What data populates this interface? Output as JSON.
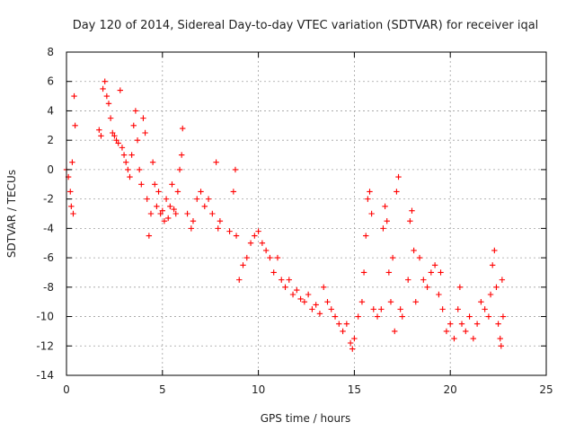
{
  "chart_data": {
    "type": "scatter",
    "title": "Day 120 of 2014, Sidereal Day-to-day VTEC variation (SDTVAR) for receiver iqal",
    "xlabel": "GPS time / hours",
    "ylabel": "SDTVAR / TECUs",
    "xlim": [
      0,
      25
    ],
    "ylim": [
      -14,
      8
    ],
    "xticks": [
      0,
      5,
      10,
      15,
      20,
      25
    ],
    "yticks": [
      -14,
      -12,
      -10,
      -8,
      -6,
      -4,
      -2,
      0,
      2,
      4,
      6,
      8
    ],
    "grid": true,
    "marker": "+",
    "series": [
      {
        "name": "SDTVAR",
        "color": "#ff0000",
        "points": [
          [
            0.0,
            0.0
          ],
          [
            0.1,
            -0.5
          ],
          [
            0.2,
            -1.5
          ],
          [
            0.25,
            -2.5
          ],
          [
            0.3,
            0.5
          ],
          [
            0.35,
            -3.0
          ],
          [
            0.4,
            5.0
          ],
          [
            0.45,
            3.0
          ],
          [
            1.7,
            2.7
          ],
          [
            1.8,
            2.3
          ],
          [
            1.9,
            5.5
          ],
          [
            2.0,
            6.0
          ],
          [
            2.1,
            5.0
          ],
          [
            2.2,
            4.5
          ],
          [
            2.3,
            3.5
          ],
          [
            2.4,
            2.5
          ],
          [
            2.5,
            2.3
          ],
          [
            2.6,
            2.0
          ],
          [
            2.7,
            1.8
          ],
          [
            2.8,
            5.4
          ],
          [
            2.9,
            1.5
          ],
          [
            3.0,
            1.0
          ],
          [
            3.1,
            0.5
          ],
          [
            3.2,
            0.0
          ],
          [
            3.3,
            -0.5
          ],
          [
            3.4,
            1.0
          ],
          [
            3.5,
            3.0
          ],
          [
            3.6,
            4.0
          ],
          [
            3.7,
            2.0
          ],
          [
            3.8,
            0.0
          ],
          [
            3.9,
            -1.0
          ],
          [
            4.0,
            3.5
          ],
          [
            4.1,
            2.5
          ],
          [
            4.2,
            -2.0
          ],
          [
            4.3,
            -4.5
          ],
          [
            4.4,
            -3.0
          ],
          [
            4.5,
            0.5
          ],
          [
            4.6,
            -1.0
          ],
          [
            4.7,
            -2.5
          ],
          [
            4.8,
            -1.5
          ],
          [
            4.9,
            -3.0
          ],
          [
            5.0,
            -2.8
          ],
          [
            5.1,
            -3.5
          ],
          [
            5.2,
            -2.0
          ],
          [
            5.3,
            -3.3
          ],
          [
            5.4,
            -2.5
          ],
          [
            5.5,
            -1.0
          ],
          [
            5.6,
            -2.7
          ],
          [
            5.7,
            -3.0
          ],
          [
            5.8,
            -1.5
          ],
          [
            5.9,
            0.0
          ],
          [
            6.0,
            1.0
          ],
          [
            6.05,
            2.8
          ],
          [
            6.3,
            -3.0
          ],
          [
            6.5,
            -4.0
          ],
          [
            6.6,
            -3.5
          ],
          [
            6.8,
            -2.0
          ],
          [
            7.0,
            -1.5
          ],
          [
            7.2,
            -2.5
          ],
          [
            7.4,
            -2.0
          ],
          [
            7.6,
            -3.0
          ],
          [
            7.8,
            0.5
          ],
          [
            7.9,
            -4.0
          ],
          [
            8.0,
            -3.5
          ],
          [
            8.5,
            -4.2
          ],
          [
            8.7,
            -1.5
          ],
          [
            8.8,
            0.0
          ],
          [
            8.85,
            -4.5
          ],
          [
            9.0,
            -7.5
          ],
          [
            9.2,
            -6.5
          ],
          [
            9.4,
            -6.0
          ],
          [
            9.6,
            -5.0
          ],
          [
            9.8,
            -4.5
          ],
          [
            10.0,
            -4.2
          ],
          [
            10.2,
            -5.0
          ],
          [
            10.4,
            -5.5
          ],
          [
            10.6,
            -6.0
          ],
          [
            10.8,
            -7.0
          ],
          [
            11.0,
            -6.0
          ],
          [
            11.2,
            -7.5
          ],
          [
            11.4,
            -8.0
          ],
          [
            11.6,
            -7.5
          ],
          [
            11.8,
            -8.5
          ],
          [
            12.0,
            -8.2
          ],
          [
            12.2,
            -8.8
          ],
          [
            12.4,
            -9.0
          ],
          [
            12.6,
            -8.5
          ],
          [
            12.8,
            -9.5
          ],
          [
            13.0,
            -9.2
          ],
          [
            13.2,
            -9.8
          ],
          [
            13.4,
            -8.0
          ],
          [
            13.6,
            -9.0
          ],
          [
            13.8,
            -9.5
          ],
          [
            14.0,
            -10.0
          ],
          [
            14.2,
            -10.5
          ],
          [
            14.4,
            -11.0
          ],
          [
            14.6,
            -10.5
          ],
          [
            14.8,
            -11.8
          ],
          [
            14.9,
            -12.2
          ],
          [
            15.0,
            -11.5
          ],
          [
            15.2,
            -10.0
          ],
          [
            15.4,
            -9.0
          ],
          [
            15.5,
            -7.0
          ],
          [
            15.6,
            -4.5
          ],
          [
            15.7,
            -2.0
          ],
          [
            15.8,
            -1.5
          ],
          [
            15.9,
            -3.0
          ],
          [
            16.0,
            -9.5
          ],
          [
            16.2,
            -10.0
          ],
          [
            16.4,
            -9.5
          ],
          [
            16.5,
            -4.0
          ],
          [
            16.6,
            -2.5
          ],
          [
            16.7,
            -3.5
          ],
          [
            16.8,
            -7.0
          ],
          [
            16.9,
            -9.0
          ],
          [
            17.0,
            -6.0
          ],
          [
            17.1,
            -11.0
          ],
          [
            17.2,
            -1.5
          ],
          [
            17.3,
            -0.5
          ],
          [
            17.4,
            -9.5
          ],
          [
            17.5,
            -10.0
          ],
          [
            17.8,
            -7.5
          ],
          [
            17.9,
            -3.5
          ],
          [
            18.0,
            -2.8
          ],
          [
            18.1,
            -5.5
          ],
          [
            18.2,
            -9.0
          ],
          [
            18.4,
            -6.0
          ],
          [
            18.6,
            -7.5
          ],
          [
            18.8,
            -8.0
          ],
          [
            19.0,
            -7.0
          ],
          [
            19.2,
            -6.5
          ],
          [
            19.4,
            -8.5
          ],
          [
            19.5,
            -7.0
          ],
          [
            19.6,
            -9.5
          ],
          [
            19.8,
            -11.0
          ],
          [
            20.0,
            -10.5
          ],
          [
            20.2,
            -11.5
          ],
          [
            20.4,
            -9.5
          ],
          [
            20.5,
            -8.0
          ],
          [
            20.6,
            -10.5
          ],
          [
            20.8,
            -11.0
          ],
          [
            21.0,
            -10.0
          ],
          [
            21.2,
            -11.5
          ],
          [
            21.4,
            -10.5
          ],
          [
            21.6,
            -9.0
          ],
          [
            21.8,
            -9.5
          ],
          [
            22.0,
            -10.0
          ],
          [
            22.1,
            -8.5
          ],
          [
            22.2,
            -6.5
          ],
          [
            22.3,
            -5.5
          ],
          [
            22.4,
            -8.0
          ],
          [
            22.5,
            -10.5
          ],
          [
            22.6,
            -11.5
          ],
          [
            22.65,
            -12.0
          ],
          [
            22.7,
            -7.5
          ],
          [
            22.75,
            -10.0
          ]
        ]
      }
    ]
  }
}
